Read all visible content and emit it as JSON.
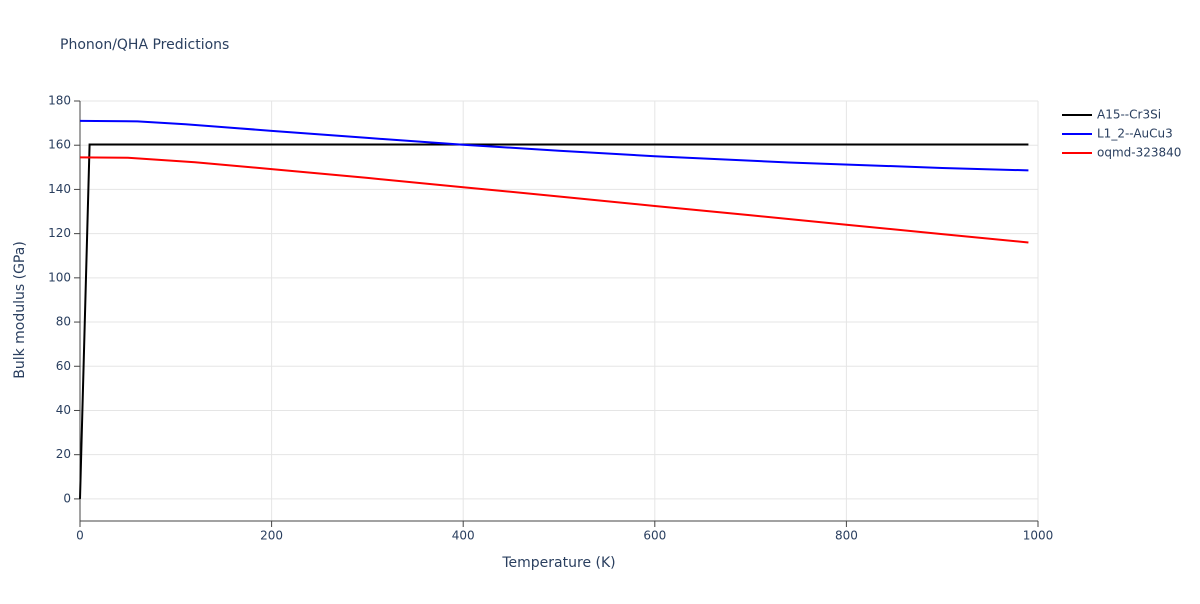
{
  "chart_data": {
    "type": "line",
    "title": "Phonon/QHA Predictions",
    "x_label": "Temperature (K)",
    "y_label": "Bulk modulus (GPa)",
    "xlim": [
      0,
      1000
    ],
    "xticks": [
      0,
      200,
      400,
      600,
      800,
      1000
    ],
    "ylim": [
      -10,
      180
    ],
    "yticks": [
      0,
      20,
      40,
      60,
      80,
      100,
      120,
      140,
      160,
      180
    ],
    "grid": true,
    "legend": "right",
    "series": [
      {
        "name": "A15--Cr3Si",
        "color": "#000000",
        "x": [
          0,
          10,
          990
        ],
        "values": [
          0,
          160.3,
          160.3
        ]
      },
      {
        "name": "L1_2--AuCu3",
        "color": "#0000ff",
        "x": [
          0,
          60,
          110,
          200,
          300,
          400,
          500,
          600,
          740,
          900,
          990
        ],
        "values": [
          171,
          170.8,
          169.5,
          166.5,
          163.3,
          160.2,
          157.5,
          155,
          152.2,
          149.7,
          148.6
        ]
      },
      {
        "name": "oqmd-323840",
        "color": "#ff0000",
        "x": [
          0,
          50,
          120,
          200,
          300,
          400,
          500,
          600,
          700,
          800,
          900,
          990
        ],
        "values": [
          154.5,
          154.3,
          152.3,
          149.2,
          145.2,
          141,
          136.8,
          132.5,
          128.3,
          124,
          119.8,
          116
        ]
      }
    ]
  }
}
